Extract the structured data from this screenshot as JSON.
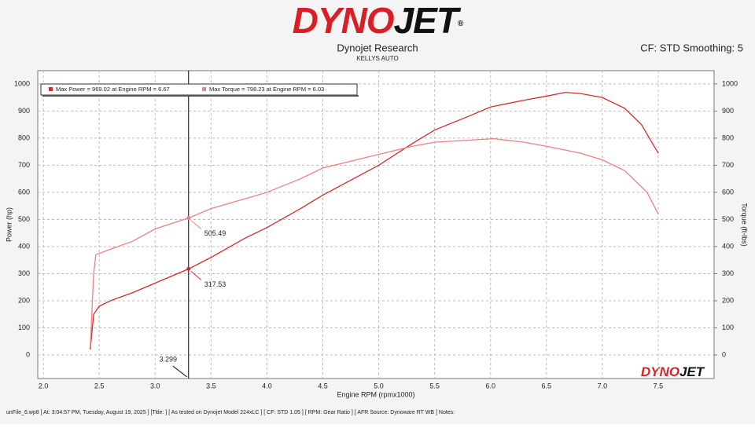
{
  "logo": {
    "part1": "DYNO",
    "part2": "JET",
    "mark": "®"
  },
  "header": {
    "title": "Dynojet Research",
    "subtitle": "KELLYS AUTO",
    "settings": "CF: STD Smoothing: 5"
  },
  "footer": {
    "text": "unFile_6.wp8 [ At: 3:04:57 PM, Tuesday, August 19, 2025 ] [Title: ]  [ As tested on Dynojet Model 224xLC ] [ CF: STD 1.05 ] [ RPM: Gear Ratio ] [ AFR Source: Dynoware RT WB ] Notes:",
    "logo1": "DYNO",
    "logo2": "JET"
  },
  "chart_data": {
    "type": "line",
    "x_label": "Engine RPM (rpmx1000)",
    "y_label": "Power (hp)",
    "y2_label": "Torque (ft-lbs)",
    "xlim": [
      1.95,
      8.0
    ],
    "xticks": [
      {
        "value": 2.0,
        "label": "2.0"
      },
      2.5,
      {
        "value": 3.0,
        "label": "3.0"
      },
      3.5,
      {
        "value": 4.0,
        "label": "4.0"
      },
      4.5,
      {
        "value": 5.0,
        "label": "5.0"
      },
      5.5,
      {
        "value": 6.0,
        "label": "6.0"
      },
      6.5,
      {
        "value": 7.0,
        "label": "7.0"
      },
      7.5
    ],
    "ylim": [
      -87,
      1049
    ],
    "yticks": [
      0,
      100,
      200,
      300,
      400,
      500,
      600,
      700,
      800,
      900,
      1000
    ],
    "y2lim": [
      -87,
      1049
    ],
    "y2ticks": [
      0,
      100,
      200,
      300,
      400,
      500,
      600,
      700,
      800,
      900,
      1000
    ],
    "grid": true,
    "cursor": 3.299,
    "series": [
      {
        "name": "Max Power = 969.02 at Engine RPM = 6.67",
        "color": "#d42a2a",
        "cursor_value": 317.53,
        "x": [
          2.42,
          2.45,
          2.5,
          2.6,
          2.8,
          3.0,
          3.3,
          3.5,
          3.8,
          4.0,
          4.3,
          4.5,
          5.0,
          5.3,
          5.5,
          5.8,
          6.0,
          6.3,
          6.5,
          6.67,
          6.8,
          7.0,
          7.2,
          7.35,
          7.5
        ],
        "values": [
          20,
          150,
          180,
          200,
          230,
          265,
          317.53,
          360,
          430,
          470,
          540,
          590,
          700,
          780,
          830,
          880,
          915,
          940,
          955,
          969,
          965,
          950,
          910,
          850,
          745
        ]
      },
      {
        "name": "Max Torque = 798.23 at Engine RPM = 6.03",
        "color": "#ee8080",
        "axis": "y2",
        "cursor_value": 505.49,
        "x": [
          2.42,
          2.45,
          2.47,
          2.6,
          2.8,
          3.0,
          3.3,
          3.5,
          4.0,
          4.3,
          4.5,
          5.0,
          5.3,
          5.5,
          5.7,
          6.03,
          6.3,
          6.5,
          6.8,
          7.0,
          7.2,
          7.4,
          7.5
        ],
        "values": [
          30,
          300,
          370,
          390,
          420,
          465,
          505.49,
          540,
          600,
          650,
          690,
          740,
          770,
          785,
          790,
          798,
          785,
          770,
          745,
          720,
          680,
          600,
          520
        ]
      }
    ]
  }
}
